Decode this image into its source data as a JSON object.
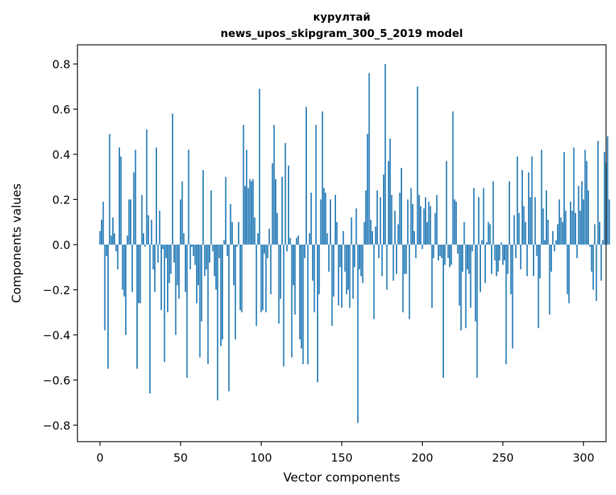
{
  "chart_data": {
    "type": "bar",
    "title_line1": "курултай",
    "title_line2": "news_upos_skipgram_300_5_2019 model",
    "xlabel": "Vector components",
    "ylabel": "Components values",
    "xlim": [
      -14,
      314
    ],
    "ylim": [
      -0.873,
      0.885
    ],
    "xticks": [
      0,
      50,
      100,
      150,
      200,
      250,
      300
    ],
    "yticks": [
      -0.8,
      -0.6,
      -0.4,
      -0.2,
      0.0,
      0.2,
      0.4,
      0.6,
      0.8
    ],
    "ytick_labels": [
      "−0.8",
      "−0.6",
      "−0.4",
      "−0.2",
      "0.0",
      "0.2",
      "0.4",
      "0.6",
      "0.8"
    ],
    "bar_color": "#1f77b4",
    "values": [
      0.06,
      0.11,
      0.19,
      -0.38,
      -0.05,
      -0.55,
      0.49,
      0.04,
      0.12,
      0.05,
      -0.03,
      -0.11,
      0.43,
      0.39,
      -0.2,
      -0.23,
      -0.4,
      0.04,
      0.2,
      0.2,
      -0.21,
      0.32,
      0.42,
      -0.55,
      -0.26,
      -0.26,
      0.22,
      0.05,
      -0.01,
      0.51,
      0.13,
      -0.66,
      0.11,
      -0.11,
      -0.21,
      0.43,
      -0.08,
      0.15,
      -0.29,
      -0.02,
      -0.52,
      -0.06,
      -0.3,
      -0.17,
      -0.13,
      0.58,
      -0.08,
      -0.4,
      -0.18,
      -0.24,
      0.2,
      0.28,
      0.05,
      -0.21,
      -0.59,
      0.42,
      -0.11,
      -0.01,
      -0.05,
      -0.09,
      -0.26,
      -0.18,
      -0.5,
      -0.34,
      0.33,
      -0.14,
      -0.11,
      -0.53,
      -0.08,
      0.24,
      -0.03,
      -0.14,
      -0.2,
      -0.69,
      -0.06,
      -0.45,
      -0.42,
      0.02,
      0.3,
      -0.05,
      -0.65,
      0.18,
      0.1,
      -0.18,
      -0.42,
      -0.01,
      0.1,
      -0.29,
      -0.3,
      0.53,
      0.26,
      0.42,
      0.25,
      0.29,
      0.28,
      0.29,
      0.12,
      -0.36,
      0.05,
      0.69,
      -0.3,
      -0.29,
      -0.04,
      -0.3,
      -0.06,
      0.07,
      -0.22,
      0.36,
      0.53,
      0.29,
      0.14,
      -0.35,
      -0.24,
      0.3,
      -0.54,
      0.45,
      -0.03,
      0.35,
      0.03,
      -0.5,
      -0.18,
      -0.31,
      0.03,
      0.04,
      -0.42,
      -0.46,
      -0.53,
      -0.06,
      0.61,
      -0.53,
      0.05,
      0.23,
      -0.16,
      -0.3,
      0.53,
      -0.61,
      -0.22,
      0.2,
      0.59,
      0.25,
      0.23,
      0.05,
      -0.12,
      0.2,
      -0.36,
      -0.23,
      0.22,
      0.1,
      -0.27,
      -0.1,
      -0.28,
      0.06,
      -0.12,
      -0.22,
      -0.2,
      -0.28,
      0.12,
      -0.24,
      -0.1,
      0.16,
      -0.79,
      -0.11,
      -0.14,
      -0.17,
      0.1,
      0.24,
      0.49,
      0.76,
      0.11,
      0.06,
      -0.33,
      0.08,
      0.24,
      -0.06,
      0.21,
      -0.14,
      0.31,
      0.8,
      -0.2,
      0.37,
      0.47,
      0.22,
      -0.16,
      0.15,
      -0.13,
      0.09,
      0.23,
      0.34,
      -0.3,
      -0.13,
      -0.13,
      0.2,
      -0.33,
      0.25,
      0.18,
      0.06,
      -0.06,
      0.7,
      0.22,
      0.17,
      -0.02,
      0.16,
      0.21,
      0.1,
      0.19,
      0.17,
      -0.28,
      -0.06,
      0.14,
      0.22,
      -0.07,
      -0.05,
      -0.06,
      -0.59,
      -0.09,
      0.37,
      -0.06,
      -0.1,
      -0.09,
      0.59,
      0.2,
      0.19,
      -0.04,
      -0.27,
      -0.38,
      -0.12,
      0.1,
      -0.37,
      -0.11,
      -0.13,
      -0.28,
      -0.03,
      0.25,
      -0.34,
      -0.59,
      0.21,
      -0.21,
      0.02,
      0.25,
      -0.17,
      0.01,
      0.1,
      0.09,
      -0.13,
      0.28,
      -0.07,
      -0.14,
      -0.12,
      -0.07,
      0.01,
      -0.09,
      -0.07,
      -0.53,
      -0.13,
      0.28,
      -0.22,
      -0.46,
      0.13,
      -0.06,
      0.39,
      0.14,
      -0.11,
      0.33,
      0.17,
      0.1,
      -0.14,
      0.32,
      0.21,
      0.39,
      -0.14,
      0.21,
      -0.05,
      -0.37,
      -0.15,
      0.42,
      0.16,
      0.02,
      0.24,
      0.11,
      -0.31,
      -0.12,
      0.06,
      -0.03,
      0.02,
      0.09,
      0.2,
      0.12,
      0.1,
      0.41,
      0.15,
      -0.22,
      -0.26,
      0.19,
      0.15,
      0.43,
      0.14,
      -0.06,
      0.26,
      0.15,
      0.28,
      0.2,
      0.42,
      0.37,
      0.24,
      -0.01,
      -0.12,
      -0.2,
      0.09,
      -0.25,
      0.46,
      0.1,
      -0.16,
      0.02,
      0.41,
      0.36,
      0.48,
      0.2
    ]
  }
}
